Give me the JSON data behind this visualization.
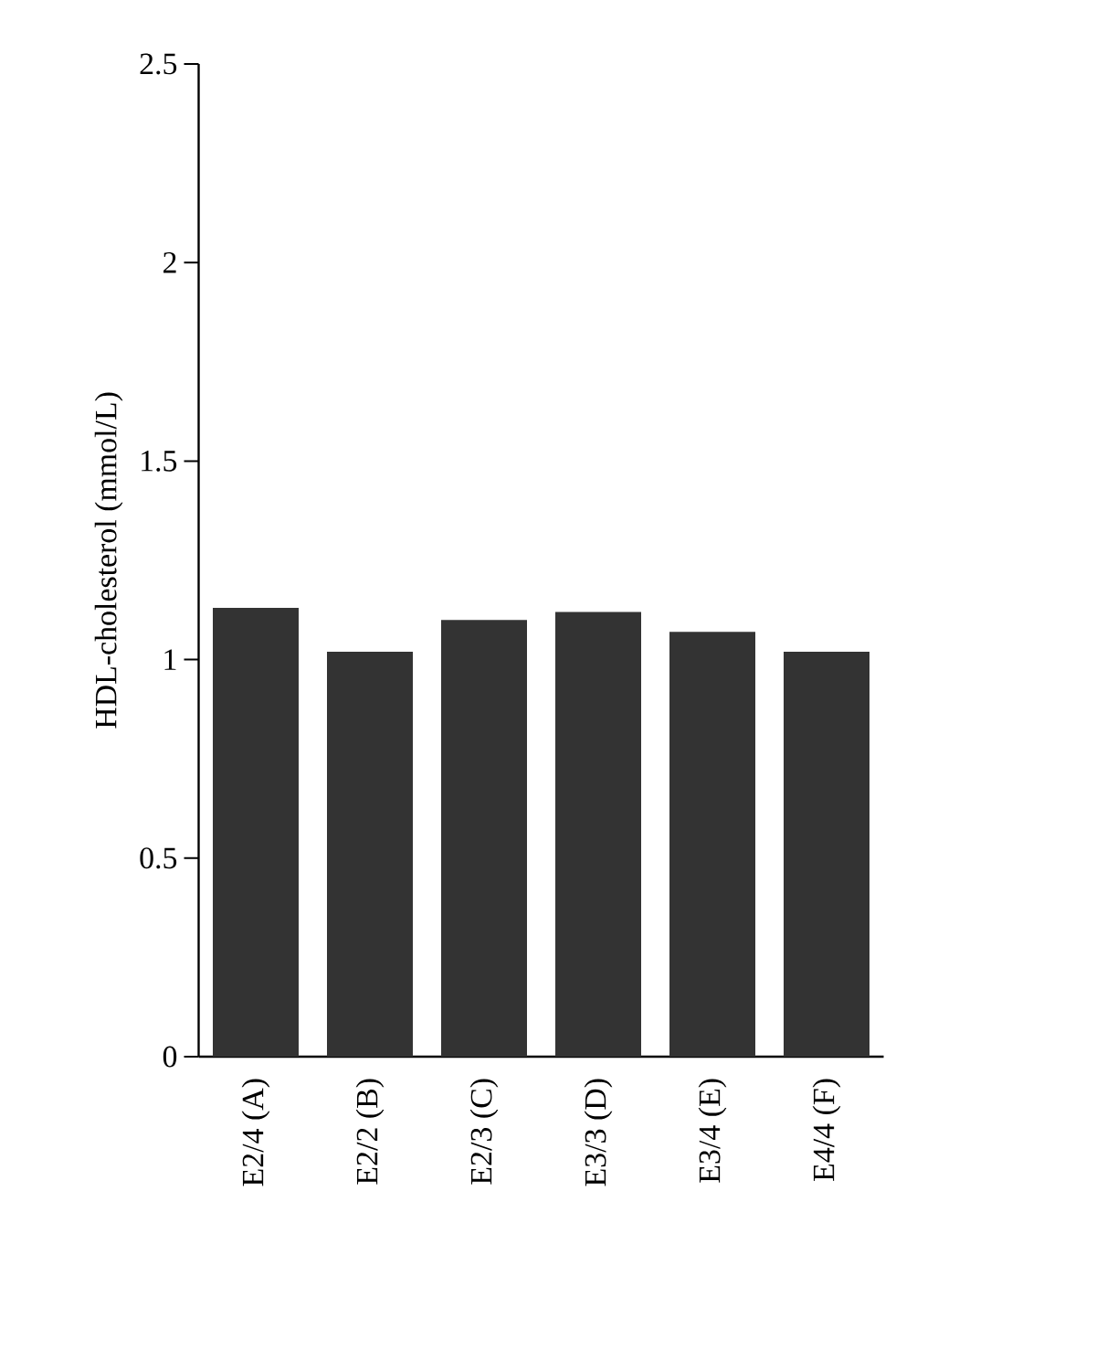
{
  "chart_data": {
    "type": "bar",
    "ylabel": "HDL-cholesterol (mmol/L)",
    "categories": [
      "E2/4 (A)",
      "E2/2 (B)",
      "E2/3 (C)",
      "E3/3 (D)",
      "E3/4 (E)",
      "E4/4 (F)"
    ],
    "values": [
      1.13,
      1.02,
      1.1,
      1.12,
      1.07,
      1.02
    ],
    "color": "#333333",
    "ylim": [
      0,
      2.5
    ],
    "yticks": [
      0,
      0.5,
      1,
      1.5,
      2,
      2.5
    ],
    "grid": false
  }
}
